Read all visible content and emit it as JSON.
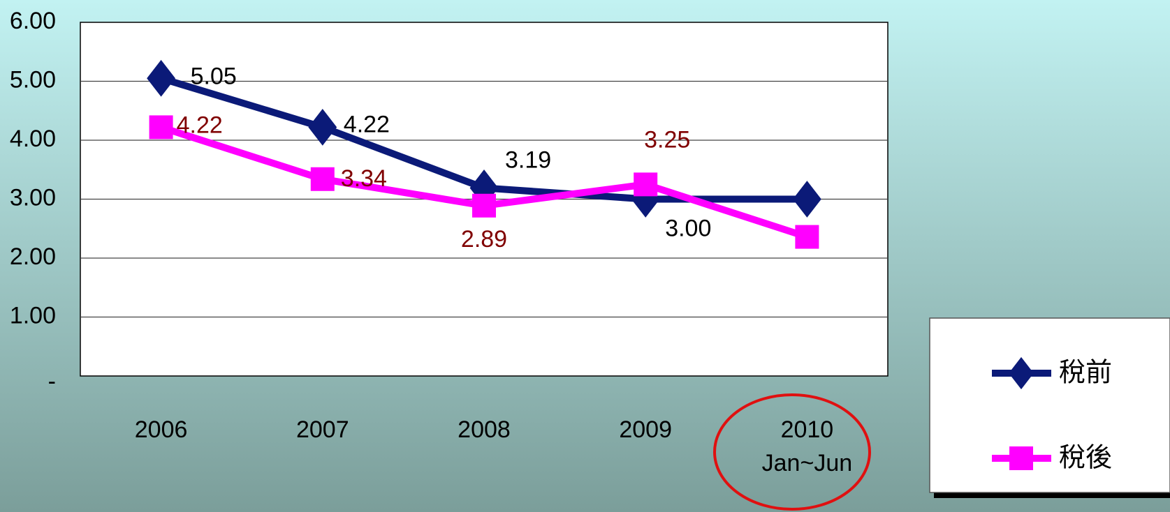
{
  "chart_data": {
    "type": "line",
    "categories": [
      "2006",
      "2007",
      "2008",
      "2009",
      "2010 Jan~Jun"
    ],
    "series": [
      {
        "name": "稅前",
        "color": "#0b1a78",
        "marker": "diamond",
        "label_color": "#000000",
        "values": [
          5.05,
          4.22,
          3.19,
          3.0,
          3.0
        ],
        "value_labels": [
          "5.05",
          "4.22",
          "3.19",
          "3.00",
          null
        ]
      },
      {
        "name": "稅後",
        "color": "#ff00ff",
        "marker": "square",
        "label_color": "#800000",
        "values": [
          4.22,
          3.34,
          2.89,
          3.25,
          2.36
        ],
        "value_labels": [
          "4.22",
          "3.34",
          "2.89",
          "3.25",
          null
        ]
      }
    ],
    "ylim": [
      0,
      6
    ],
    "yticks": [
      {
        "value": 0,
        "label": "-"
      },
      {
        "value": 1,
        "label": "1.00"
      },
      {
        "value": 2,
        "label": "2.00"
      },
      {
        "value": 3,
        "label": "3.00"
      },
      {
        "value": 4,
        "label": "4.00"
      },
      {
        "value": 5,
        "label": "5.00"
      },
      {
        "value": 6,
        "label": "6.00"
      }
    ],
    "grid": true,
    "legend": "right"
  }
}
